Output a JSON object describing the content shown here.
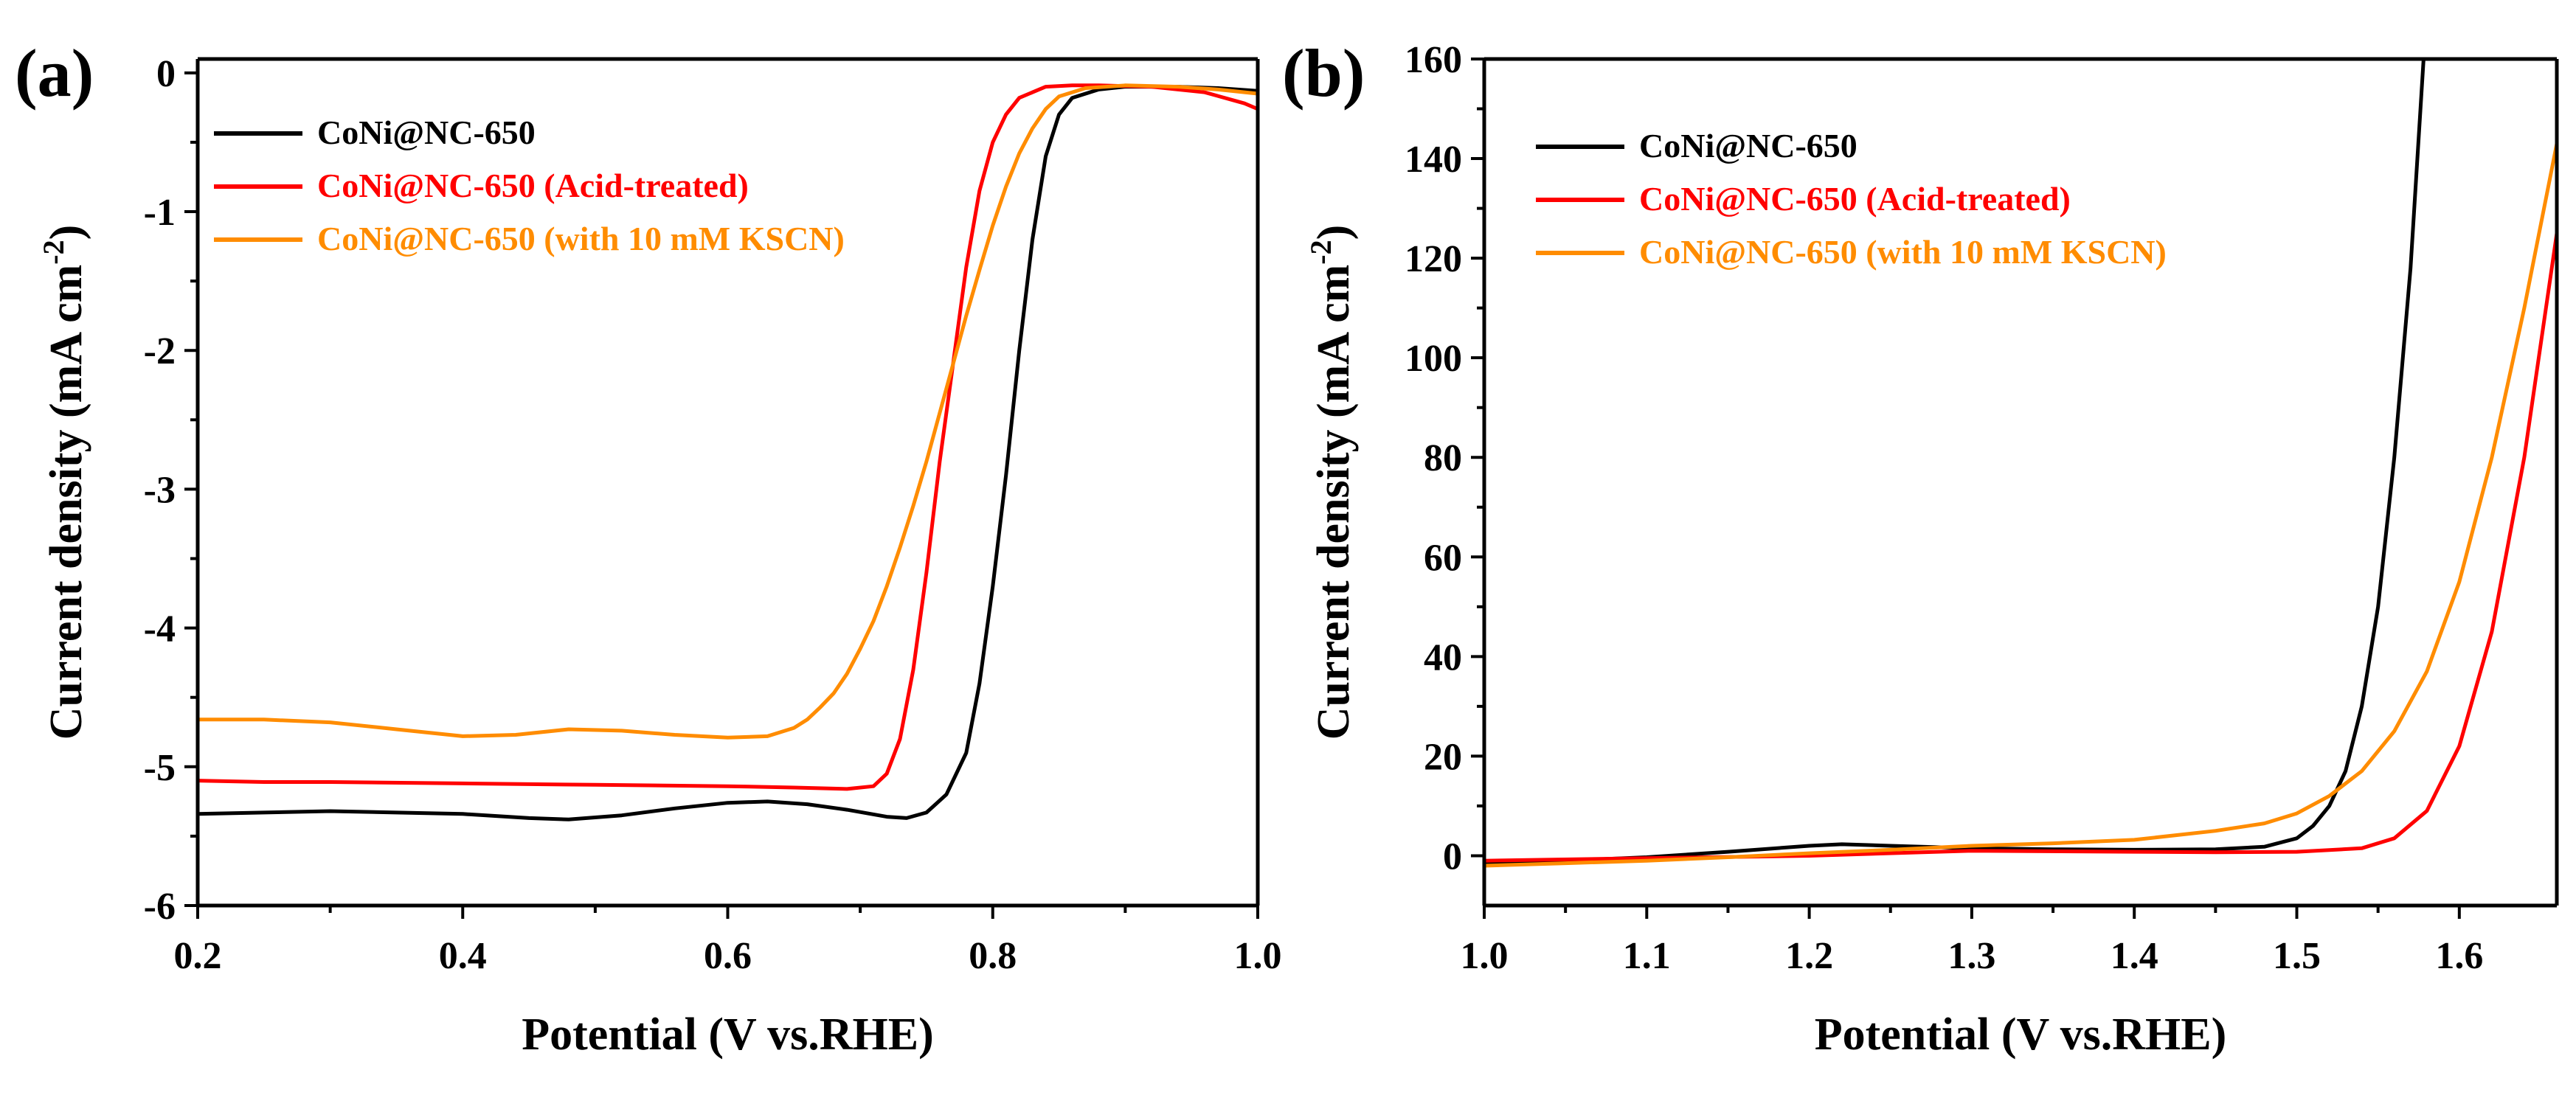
{
  "chart_data": [
    {
      "panel_label": "(a)",
      "type": "line",
      "title": "",
      "xlabel": "Potential (V vs.RHE)",
      "ylabel_main": "Current density (mA cm",
      "ylabel_sup": "-2",
      "ylabel_close": ")",
      "xlim": [
        0.2,
        1.0
      ],
      "ylim": [
        -6,
        0.1
      ],
      "xticks": [
        0.2,
        0.4,
        0.6,
        0.8,
        1.0
      ],
      "xtick_labels": [
        "0.2",
        "0.4",
        "0.6",
        "0.8",
        "1.0"
      ],
      "yticks": [
        -6,
        -5,
        -4,
        -3,
        -2,
        -1,
        0
      ],
      "ytick_labels": [
        "-6",
        "-5",
        "-4",
        "-3",
        "-2",
        "-1",
        "0"
      ],
      "grid": false,
      "legend_position": "top-left",
      "series": [
        {
          "name": "CoNi@NC-650",
          "color": "#000000",
          "points": [
            [
              0.2,
              -5.34
            ],
            [
              0.25,
              -5.33
            ],
            [
              0.3,
              -5.32
            ],
            [
              0.35,
              -5.33
            ],
            [
              0.4,
              -5.34
            ],
            [
              0.45,
              -5.37
            ],
            [
              0.48,
              -5.38
            ],
            [
              0.52,
              -5.35
            ],
            [
              0.56,
              -5.3
            ],
            [
              0.6,
              -5.26
            ],
            [
              0.63,
              -5.25
            ],
            [
              0.66,
              -5.27
            ],
            [
              0.69,
              -5.31
            ],
            [
              0.72,
              -5.36
            ],
            [
              0.735,
              -5.37
            ],
            [
              0.75,
              -5.33
            ],
            [
              0.765,
              -5.2
            ],
            [
              0.78,
              -4.9
            ],
            [
              0.79,
              -4.4
            ],
            [
              0.8,
              -3.7
            ],
            [
              0.81,
              -2.9
            ],
            [
              0.82,
              -2.0
            ],
            [
              0.83,
              -1.2
            ],
            [
              0.84,
              -0.6
            ],
            [
              0.85,
              -0.3
            ],
            [
              0.86,
              -0.18
            ],
            [
              0.88,
              -0.12
            ],
            [
              0.9,
              -0.1
            ],
            [
              0.94,
              -0.1
            ],
            [
              0.97,
              -0.11
            ],
            [
              1.0,
              -0.13
            ]
          ]
        },
        {
          "name": "CoNi@NC-650 (Acid-treated)",
          "color": "#ff0000",
          "points": [
            [
              0.2,
              -5.1
            ],
            [
              0.25,
              -5.11
            ],
            [
              0.3,
              -5.11
            ],
            [
              0.4,
              -5.12
            ],
            [
              0.5,
              -5.13
            ],
            [
              0.6,
              -5.14
            ],
            [
              0.65,
              -5.15
            ],
            [
              0.69,
              -5.16
            ],
            [
              0.71,
              -5.14
            ],
            [
              0.72,
              -5.05
            ],
            [
              0.73,
              -4.8
            ],
            [
              0.74,
              -4.3
            ],
            [
              0.75,
              -3.6
            ],
            [
              0.76,
              -2.8
            ],
            [
              0.77,
              -2.1
            ],
            [
              0.78,
              -1.4
            ],
            [
              0.79,
              -0.85
            ],
            [
              0.8,
              -0.5
            ],
            [
              0.81,
              -0.3
            ],
            [
              0.82,
              -0.18
            ],
            [
              0.84,
              -0.1
            ],
            [
              0.86,
              -0.09
            ],
            [
              0.88,
              -0.09
            ],
            [
              0.92,
              -0.1
            ],
            [
              0.96,
              -0.14
            ],
            [
              0.99,
              -0.22
            ],
            [
              1.0,
              -0.26
            ]
          ]
        },
        {
          "name": "CoNi@NC-650 (with 10 mM KSCN)",
          "color": "#ff8c00",
          "points": [
            [
              0.2,
              -4.66
            ],
            [
              0.25,
              -4.66
            ],
            [
              0.3,
              -4.68
            ],
            [
              0.35,
              -4.73
            ],
            [
              0.4,
              -4.78
            ],
            [
              0.44,
              -4.77
            ],
            [
              0.48,
              -4.73
            ],
            [
              0.52,
              -4.74
            ],
            [
              0.56,
              -4.77
            ],
            [
              0.6,
              -4.79
            ],
            [
              0.63,
              -4.78
            ],
            [
              0.65,
              -4.72
            ],
            [
              0.66,
              -4.66
            ],
            [
              0.67,
              -4.57
            ],
            [
              0.68,
              -4.47
            ],
            [
              0.69,
              -4.33
            ],
            [
              0.7,
              -4.15
            ],
            [
              0.71,
              -3.95
            ],
            [
              0.72,
              -3.7
            ],
            [
              0.73,
              -3.42
            ],
            [
              0.74,
              -3.12
            ],
            [
              0.75,
              -2.8
            ],
            [
              0.76,
              -2.45
            ],
            [
              0.77,
              -2.1
            ],
            [
              0.78,
              -1.75
            ],
            [
              0.79,
              -1.42
            ],
            [
              0.8,
              -1.1
            ],
            [
              0.81,
              -0.82
            ],
            [
              0.82,
              -0.58
            ],
            [
              0.83,
              -0.4
            ],
            [
              0.84,
              -0.26
            ],
            [
              0.85,
              -0.17
            ],
            [
              0.87,
              -0.11
            ],
            [
              0.9,
              -0.09
            ],
            [
              0.94,
              -0.1
            ],
            [
              0.97,
              -0.12
            ],
            [
              1.0,
              -0.15
            ]
          ]
        }
      ]
    },
    {
      "panel_label": "(b)",
      "type": "line",
      "title": "",
      "xlabel": "Potential (V vs.RHE)",
      "ylabel_main": "Current density (mA cm",
      "ylabel_sup": "-2",
      "ylabel_close": ")",
      "xlim": [
        1.0,
        1.66
      ],
      "ylim": [
        -10,
        160
      ],
      "xticks": [
        1.0,
        1.1,
        1.2,
        1.3,
        1.4,
        1.5,
        1.6
      ],
      "xtick_labels": [
        "1.0",
        "1.1",
        "1.2",
        "1.3",
        "1.4",
        "1.5",
        "1.6"
      ],
      "yticks": [
        0,
        20,
        40,
        60,
        80,
        100,
        120,
        140,
        160
      ],
      "ytick_labels": [
        "0",
        "20",
        "40",
        "60",
        "80",
        "100",
        "120",
        "140",
        "160"
      ],
      "grid": false,
      "legend_position": "top-left",
      "series": [
        {
          "name": "CoNi@NC-650",
          "color": "#000000",
          "points": [
            [
              1.0,
              -1.5
            ],
            [
              1.05,
              -1.0
            ],
            [
              1.1,
              -0.3
            ],
            [
              1.15,
              0.8
            ],
            [
              1.2,
              2.0
            ],
            [
              1.22,
              2.3
            ],
            [
              1.25,
              2.0
            ],
            [
              1.3,
              1.5
            ],
            [
              1.35,
              1.3
            ],
            [
              1.4,
              1.2
            ],
            [
              1.45,
              1.3
            ],
            [
              1.48,
              1.8
            ],
            [
              1.5,
              3.5
            ],
            [
              1.51,
              6.0
            ],
            [
              1.52,
              10.0
            ],
            [
              1.53,
              17.0
            ],
            [
              1.54,
              30.0
            ],
            [
              1.55,
              50.0
            ],
            [
              1.56,
              80.0
            ],
            [
              1.57,
              118.0
            ],
            [
              1.578,
              160.0
            ]
          ]
        },
        {
          "name": "CoNi@NC-650 (Acid-treated)",
          "color": "#ff0000",
          "points": [
            [
              1.0,
              -1.0
            ],
            [
              1.1,
              -0.5
            ],
            [
              1.2,
              0.0
            ],
            [
              1.3,
              1.0
            ],
            [
              1.4,
              0.8
            ],
            [
              1.45,
              0.7
            ],
            [
              1.5,
              0.8
            ],
            [
              1.54,
              1.5
            ],
            [
              1.56,
              3.5
            ],
            [
              1.58,
              9.0
            ],
            [
              1.6,
              22.0
            ],
            [
              1.62,
              45.0
            ],
            [
              1.64,
              80.0
            ],
            [
              1.66,
              125.0
            ]
          ]
        },
        {
          "name": "CoNi@NC-650 (with 10 mM KSCN)",
          "color": "#ff8c00",
          "points": [
            [
              1.0,
              -2.0
            ],
            [
              1.05,
              -1.5
            ],
            [
              1.1,
              -1.0
            ],
            [
              1.15,
              -0.3
            ],
            [
              1.2,
              0.5
            ],
            [
              1.25,
              1.2
            ],
            [
              1.3,
              2.0
            ],
            [
              1.35,
              2.5
            ],
            [
              1.4,
              3.2
            ],
            [
              1.45,
              5.0
            ],
            [
              1.48,
              6.5
            ],
            [
              1.5,
              8.5
            ],
            [
              1.52,
              12.0
            ],
            [
              1.54,
              17.0
            ],
            [
              1.56,
              25.0
            ],
            [
              1.58,
              37.0
            ],
            [
              1.6,
              55.0
            ],
            [
              1.62,
              80.0
            ],
            [
              1.64,
              110.0
            ],
            [
              1.66,
              143.0
            ]
          ]
        }
      ]
    }
  ]
}
